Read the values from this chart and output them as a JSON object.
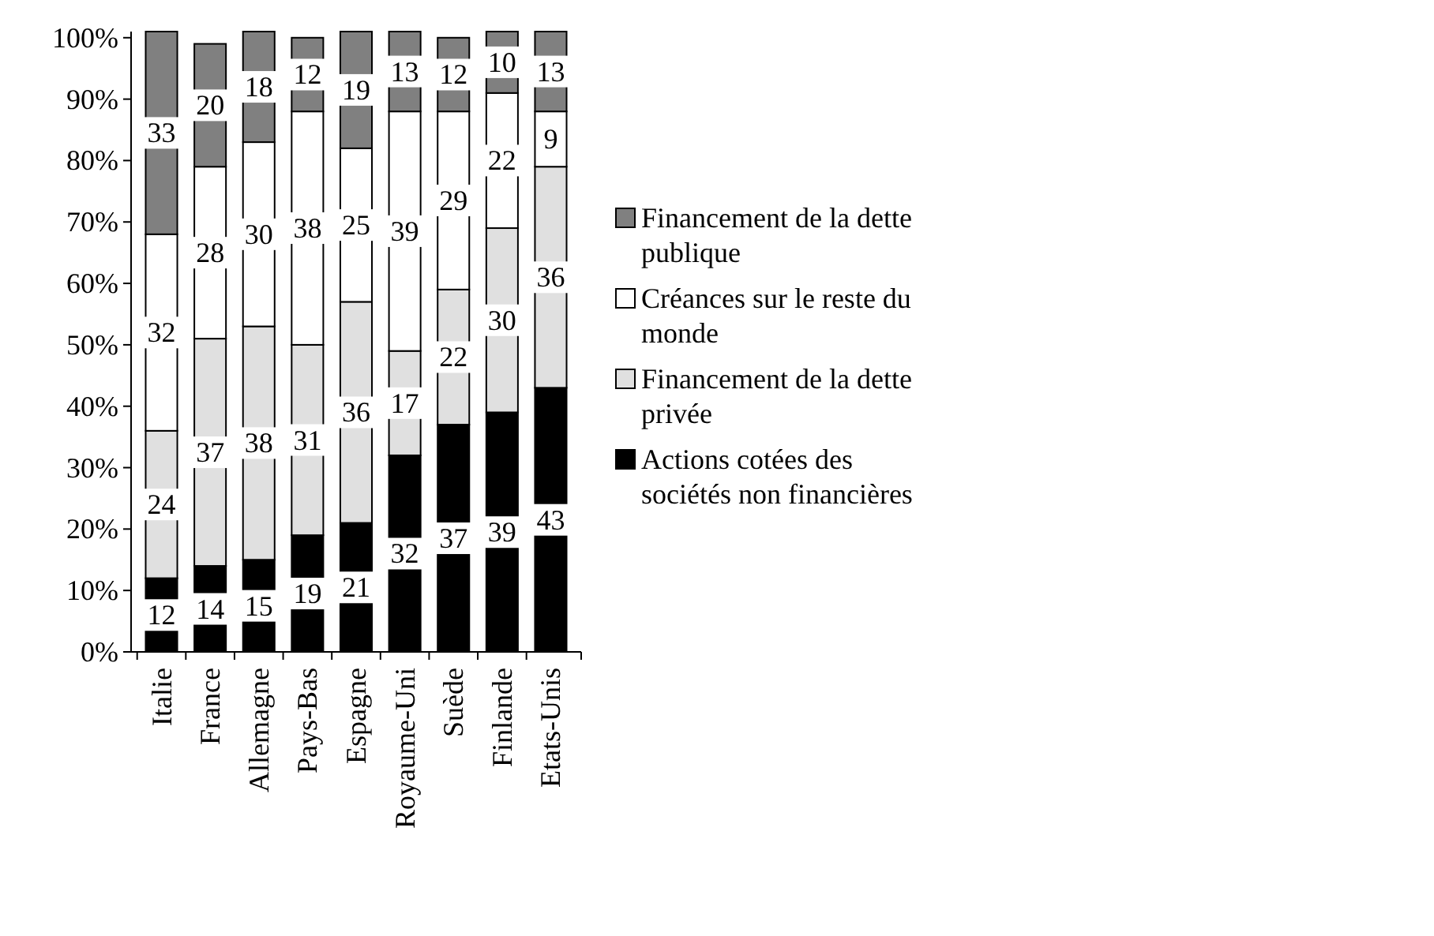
{
  "chart_data": {
    "type": "bar",
    "stacked": true,
    "data_labels": true,
    "legend": "right",
    "grid": false,
    "categories": [
      "Italie",
      "France",
      "Allemagne",
      "Pays-Bas",
      "Espagne",
      "Royaume-Uni",
      "Suède",
      "Finlande",
      "Etats-Unis"
    ],
    "ylim": [
      0,
      101
    ],
    "yticks": [
      {
        "value": 0,
        "label": "0%"
      },
      {
        "value": 10,
        "label": "10%"
      },
      {
        "value": 20,
        "label": "20%"
      },
      {
        "value": 30,
        "label": "30%"
      },
      {
        "value": 40,
        "label": "40%"
      },
      {
        "value": 50,
        "label": "50%"
      },
      {
        "value": 60,
        "label": "60%"
      },
      {
        "value": 70,
        "label": "70%"
      },
      {
        "value": 80,
        "label": "80%"
      },
      {
        "value": 90,
        "label": "90%"
      },
      {
        "value": 100,
        "label": "100%"
      }
    ],
    "series": [
      {
        "name": "Actions cotées des sociétés non financières",
        "color": "#000000",
        "values": [
          12,
          14,
          15,
          19,
          21,
          32,
          37,
          39,
          43
        ]
      },
      {
        "name": "Financement de la dette privée",
        "color": "#e0e0e0",
        "values": [
          24,
          37,
          38,
          31,
          36,
          17,
          22,
          30,
          36
        ]
      },
      {
        "name": "Créances sur le reste du monde",
        "color": "#ffffff",
        "values": [
          32,
          28,
          30,
          38,
          25,
          39,
          29,
          22,
          9
        ]
      },
      {
        "name": "Financement de la dette publique",
        "color": "#808080",
        "values": [
          33,
          20,
          18,
          12,
          19,
          13,
          12,
          10,
          13
        ]
      }
    ]
  }
}
